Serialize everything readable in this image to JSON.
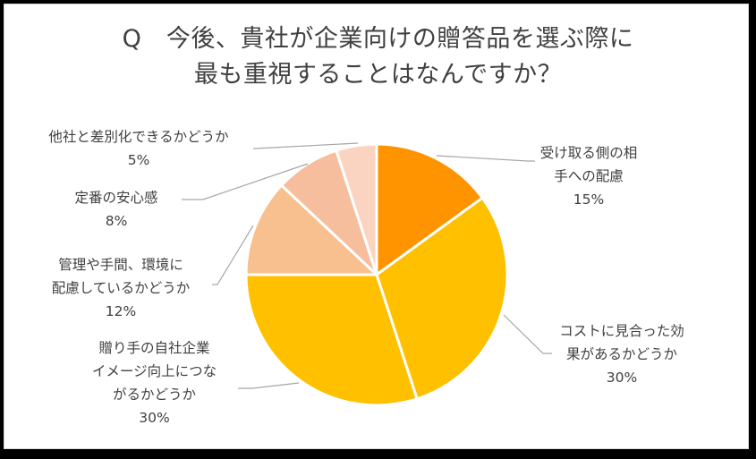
{
  "title": {
    "line1": "Q　今後、貴社が企業向けの贈答品を選ぶ際に",
    "line2": "最も重視することはなんですか？"
  },
  "chart_data": {
    "type": "pie",
    "title": "Q 今後、貴社が企業向けの贈答品を選ぶ際に最も重視することはなんですか？",
    "start_angle": "12 o'clock, clockwise",
    "slices": [
      {
        "label": "受け取る側の相手への配慮",
        "value": 15,
        "display": "15%",
        "color": "#FF9400"
      },
      {
        "label": "コストに見合った効果があるかどうか",
        "value": 30,
        "display": "30%",
        "color": "#FFC000"
      },
      {
        "label": "贈り手の自社企業イメージ向上につながるかどうか",
        "value": 30,
        "display": "30%",
        "color": "#FFC000"
      },
      {
        "label": "管理や手間、環境に配慮しているかどうか",
        "value": 12,
        "display": "12%",
        "color": "#F8C08F"
      },
      {
        "label": "定番の安心感",
        "value": 8,
        "display": "8%",
        "color": "#F7BE9D"
      },
      {
        "label": "他社と差別化できるかどうか",
        "value": 5,
        "display": "5%",
        "color": "#FAD4C0"
      }
    ],
    "legend": "none (data labels with leader lines)"
  },
  "labels": [
    {
      "lines": [
        "受け取る側の相",
        "手への配慮"
      ],
      "pct": "15%"
    },
    {
      "lines": [
        "コストに見合った効",
        "果があるかどうか"
      ],
      "pct": "30%"
    },
    {
      "lines": [
        "贈り手の自社企業",
        "イメージ向上につな",
        "がるかどうか"
      ],
      "pct": "30%"
    },
    {
      "lines": [
        "管理や手間、環境に",
        "配慮しているかどうか"
      ],
      "pct": "12%"
    },
    {
      "lines": [
        "定番の安心感"
      ],
      "pct": "8%"
    },
    {
      "lines": [
        "他社と差別化できるかどうか"
      ],
      "pct": "5%"
    }
  ]
}
